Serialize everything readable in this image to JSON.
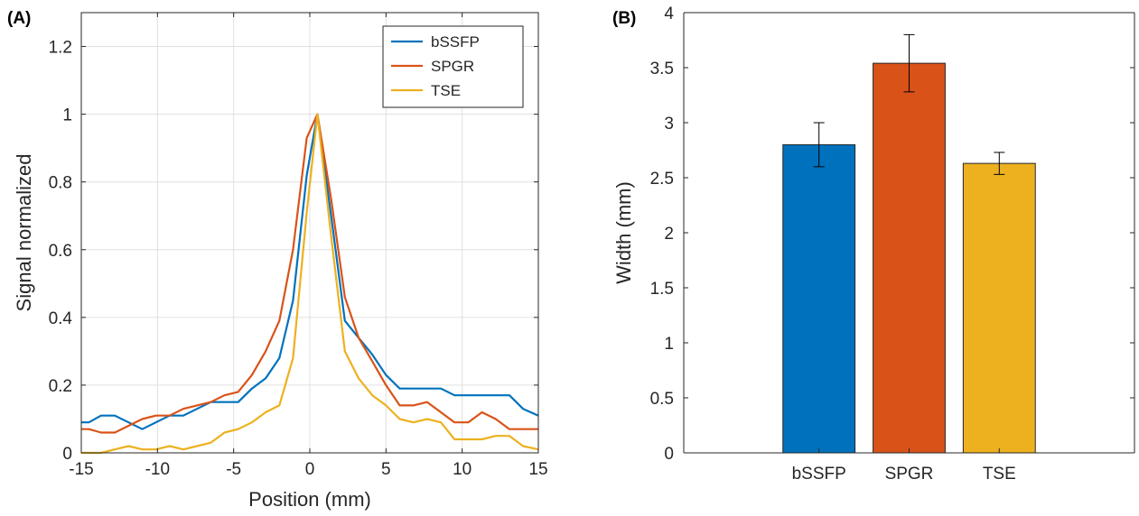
{
  "figure": {
    "panel_a_label": "(A)",
    "panel_b_label": "(B)"
  },
  "chart_data": [
    {
      "type": "line",
      "panel": "(A)",
      "xlabel": "Position (mm)",
      "ylabel": "Signal normalized",
      "xlim": [
        -15,
        15
      ],
      "ylim": [
        0,
        1.3
      ],
      "xticks": [
        -15,
        -10,
        -5,
        0,
        5,
        10,
        15
      ],
      "yticks": [
        0,
        0.2,
        0.4,
        0.6,
        0.8,
        1,
        1.2
      ],
      "grid": true,
      "legend_position": "top-right",
      "series": [
        {
          "name": "bSSFP",
          "color": "#0072BD",
          "x": [
            -15,
            -14.5,
            -13.7,
            -12.8,
            -11.9,
            -11,
            -10.1,
            -9.2,
            -8.3,
            -7.4,
            -6.5,
            -5.6,
            -4.7,
            -3.8,
            -2.9,
            -2.0,
            -1.1,
            -0.2,
            0.5,
            1.4,
            2.3,
            3.2,
            4.1,
            5.0,
            5.9,
            6.8,
            7.7,
            8.6,
            9.5,
            10.4,
            11.3,
            12.2,
            13.1,
            14.0,
            15
          ],
          "y": [
            0.09,
            0.09,
            0.11,
            0.11,
            0.09,
            0.07,
            0.09,
            0.11,
            0.11,
            0.13,
            0.15,
            0.15,
            0.15,
            0.19,
            0.22,
            0.28,
            0.45,
            0.82,
            1.0,
            0.7,
            0.39,
            0.34,
            0.29,
            0.23,
            0.19,
            0.19,
            0.19,
            0.19,
            0.17,
            0.17,
            0.17,
            0.17,
            0.17,
            0.13,
            0.11
          ]
        },
        {
          "name": "SPGR",
          "color": "#D95319",
          "x": [
            -15,
            -14.5,
            -13.7,
            -12.8,
            -11.9,
            -11,
            -10.1,
            -9.2,
            -8.3,
            -7.4,
            -6.5,
            -5.6,
            -4.7,
            -3.8,
            -2.9,
            -2.0,
            -1.1,
            -0.2,
            0.5,
            1.4,
            2.3,
            3.2,
            4.1,
            5.0,
            5.9,
            6.8,
            7.7,
            8.6,
            9.5,
            10.4,
            11.3,
            12.2,
            13.1,
            14.0,
            15
          ],
          "y": [
            0.07,
            0.07,
            0.06,
            0.06,
            0.08,
            0.1,
            0.11,
            0.11,
            0.13,
            0.14,
            0.15,
            0.17,
            0.18,
            0.23,
            0.3,
            0.39,
            0.6,
            0.93,
            1.0,
            0.75,
            0.46,
            0.34,
            0.27,
            0.2,
            0.14,
            0.14,
            0.15,
            0.12,
            0.09,
            0.09,
            0.12,
            0.1,
            0.07,
            0.07,
            0.07
          ]
        },
        {
          "name": "TSE",
          "color": "#EDB120",
          "x": [
            -15,
            -14.5,
            -13.7,
            -12.8,
            -11.9,
            -11,
            -10.1,
            -9.2,
            -8.3,
            -7.4,
            -6.5,
            -5.6,
            -4.7,
            -3.8,
            -2.9,
            -2.0,
            -1.1,
            -0.2,
            0.5,
            1.4,
            2.3,
            3.2,
            4.1,
            5.0,
            5.9,
            6.8,
            7.7,
            8.6,
            9.5,
            10.4,
            11.3,
            12.2,
            13.1,
            14.0,
            15
          ],
          "y": [
            0.0,
            0.0,
            0.0,
            0.01,
            0.02,
            0.01,
            0.01,
            0.02,
            0.01,
            0.02,
            0.03,
            0.06,
            0.07,
            0.09,
            0.12,
            0.14,
            0.28,
            0.71,
            1.0,
            0.64,
            0.3,
            0.22,
            0.17,
            0.14,
            0.1,
            0.09,
            0.1,
            0.09,
            0.04,
            0.04,
            0.04,
            0.05,
            0.05,
            0.02,
            0.01
          ]
        }
      ]
    },
    {
      "type": "bar",
      "panel": "(B)",
      "ylabel": "Width (mm)",
      "categories": [
        "bSSFP",
        "SPGR",
        "TSE"
      ],
      "values": [
        2.8,
        3.54,
        2.63
      ],
      "error": [
        0.2,
        0.26,
        0.1
      ],
      "colors": [
        "#0072BD",
        "#D95319",
        "#EDB120"
      ],
      "ylim": [
        0,
        4
      ],
      "yticks": [
        0,
        0.5,
        1,
        1.5,
        2,
        2.5,
        3,
        3.5,
        4
      ],
      "grid": false
    }
  ]
}
